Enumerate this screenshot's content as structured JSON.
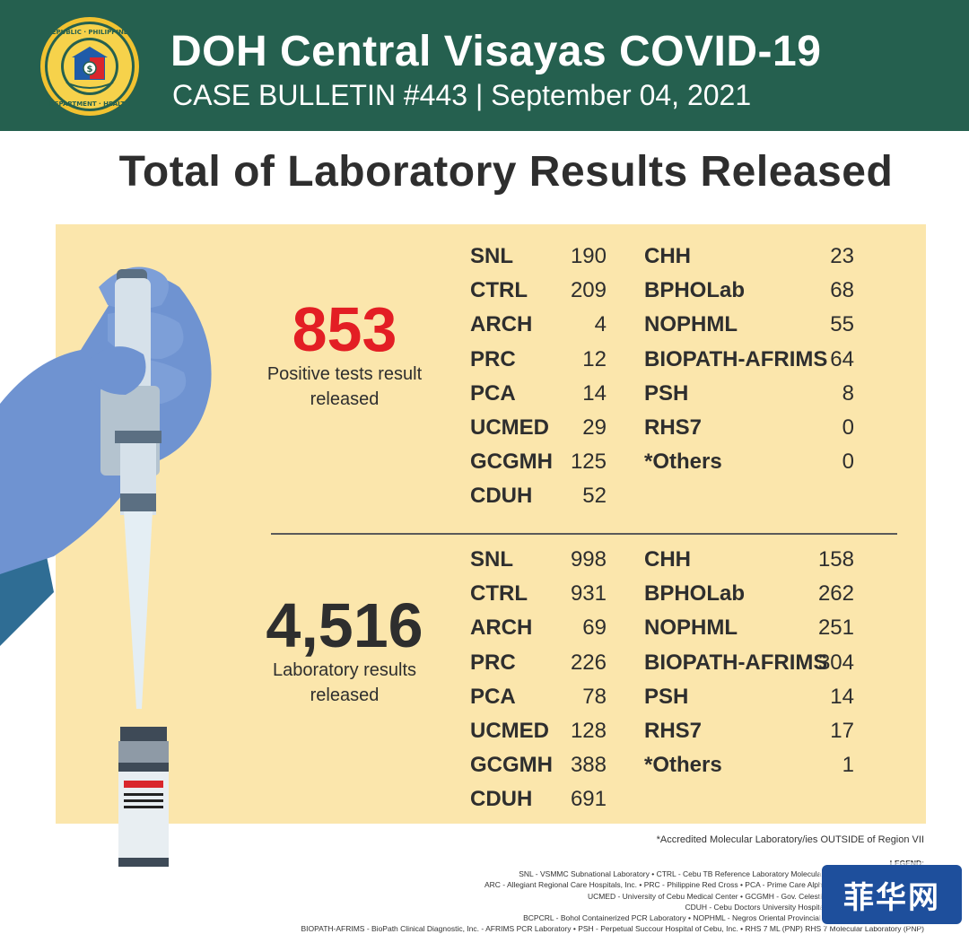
{
  "header": {
    "title": "DOH Central Visayas COVID-19",
    "subtitle": "CASE BULLETIN #443 | September 04, 2021",
    "seal_text": "REPUBLIC OF THE PHILIPPINES · DEPARTMENT OF HEALTH"
  },
  "main_title": "Total of Laboratory Results Released",
  "positive": {
    "number": "853",
    "caption_line1": "Positive tests result",
    "caption_line2": "released",
    "left_labs": [
      {
        "name": "SNL",
        "value": "190"
      },
      {
        "name": "CTRL",
        "value": "209"
      },
      {
        "name": "ARCH",
        "value": "4"
      },
      {
        "name": "PRC",
        "value": "12"
      },
      {
        "name": "PCA",
        "value": "14"
      },
      {
        "name": "UCMED",
        "value": "29"
      },
      {
        "name": "GCGMH",
        "value": "125"
      },
      {
        "name": "CDUH",
        "value": "52"
      }
    ],
    "right_labs": [
      {
        "name": "CHH",
        "value": "23"
      },
      {
        "name": "BPHOLab",
        "value": "68"
      },
      {
        "name": "NOPHML",
        "value": "55"
      },
      {
        "name": "BIOPATH-AFRIMS",
        "value": "64"
      },
      {
        "name": "PSH",
        "value": "8"
      },
      {
        "name": "RHS7",
        "value": "0"
      },
      {
        "name": "*Others",
        "value": "0"
      }
    ]
  },
  "total": {
    "number": "4,516",
    "caption_line1": "Laboratory results",
    "caption_line2": "released",
    "left_labs": [
      {
        "name": "SNL",
        "value": "998"
      },
      {
        "name": "CTRL",
        "value": "931"
      },
      {
        "name": "ARCH",
        "value": "69"
      },
      {
        "name": "PRC",
        "value": "226"
      },
      {
        "name": "PCA",
        "value": "78"
      },
      {
        "name": "UCMED",
        "value": "128"
      },
      {
        "name": "GCGMH",
        "value": "388"
      },
      {
        "name": "CDUH",
        "value": "691"
      }
    ],
    "right_labs": [
      {
        "name": "CHH",
        "value": "158"
      },
      {
        "name": "BPHOLab",
        "value": "262"
      },
      {
        "name": "NOPHML",
        "value": "251"
      },
      {
        "name": "BIOPATH-AFRIMS",
        "value": "304"
      },
      {
        "name": "PSH",
        "value": "14"
      },
      {
        "name": "RHS7",
        "value": "17"
      },
      {
        "name": "*Others",
        "value": "1"
      }
    ]
  },
  "footnote": "*Accredited Molecular Laboratory/ies OUTSIDE of Region VII",
  "legend": {
    "title": "LEGEND:",
    "lines": [
      "SNL - VSMMC Subnational Laboratory • CTRL - Cebu TB Reference Laboratory Molecular Facility for COVID-19 Testing",
      "ARC - Allegiant Regional Care Hospitals, Inc. • PRC - Philippine Red Cross • PCA - Prime Care Alpha Covid-19 Testing Laboratory",
      "UCMED - University of Cebu Medical Center • GCGMH - Gov. Celestino Gallares Memorial Hospital",
      "CDUH - Cebu Doctors University Hospital • CHH - Chong Hua Hospital",
      "BCPCRL - Bohol Containerized PCR Laboratory • NOPHML - Negros Oriental Provincial Hospital Molecular Laboratory",
      "BIOPATH-AFRIMS - BioPath Clinical Diagnostic, Inc. - AFRIMS PCR Laboratory • PSH - Perpetual Succour Hospital of Cebu, Inc. • RHS 7 ML (PNP) RHS 7 Molecular Laboratory (PNP)"
    ]
  },
  "watermark": "菲华网",
  "colors": {
    "header_bg": "#25604f",
    "panel_bg": "#fbe6ac",
    "positive_red": "#e31e24",
    "glove_blue": "#6f93d1",
    "watermark_bg": "#1e4f9c"
  }
}
